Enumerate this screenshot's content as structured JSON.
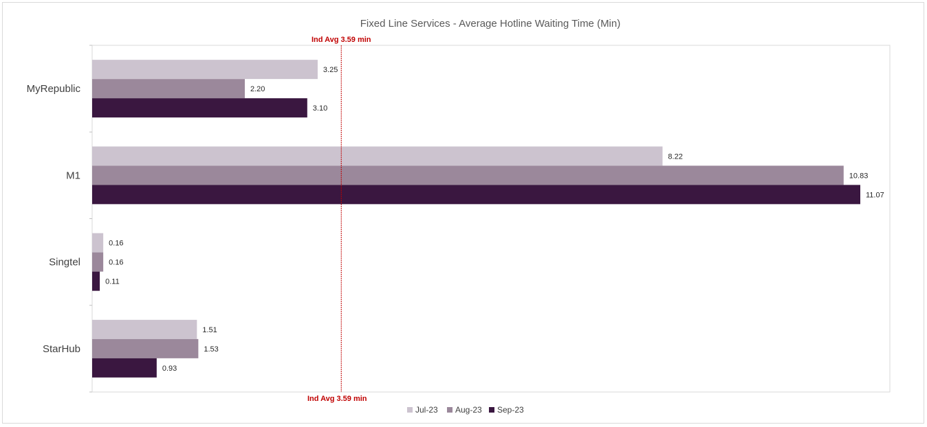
{
  "chart_data": {
    "type": "bar",
    "orientation": "horizontal",
    "title": "Fixed Line Services - Average Hotline Waiting Time (Min)",
    "categories": [
      "MyRepublic",
      "M1",
      "Singtel",
      "StarHub"
    ],
    "series": [
      {
        "name": "Jul-23",
        "color": "#ccc3cf",
        "values": [
          3.25,
          8.22,
          0.16,
          1.51
        ],
        "labels": [
          "3.25",
          "8.22",
          "0.16",
          "1.51"
        ]
      },
      {
        "name": "Aug-23",
        "color": "#9b889b",
        "values": [
          2.2,
          10.83,
          0.16,
          1.53
        ],
        "labels": [
          "2.20",
          "10.83",
          "0.16",
          "1.53"
        ]
      },
      {
        "name": "Sep-23",
        "color": "#3a1740",
        "values": [
          3.1,
          11.07,
          0.11,
          0.93
        ],
        "labels": [
          "3.10",
          "11.07",
          "0.11",
          "0.93"
        ]
      }
    ],
    "xlim": [
      0,
      11.5
    ],
    "grid": false,
    "legend_position": "bottom",
    "reference_line": {
      "value": 3.59,
      "label_top": "Ind Avg 3.59 min",
      "label_bottom": "Ind Avg 3.59 min",
      "color": "#c00000"
    }
  }
}
